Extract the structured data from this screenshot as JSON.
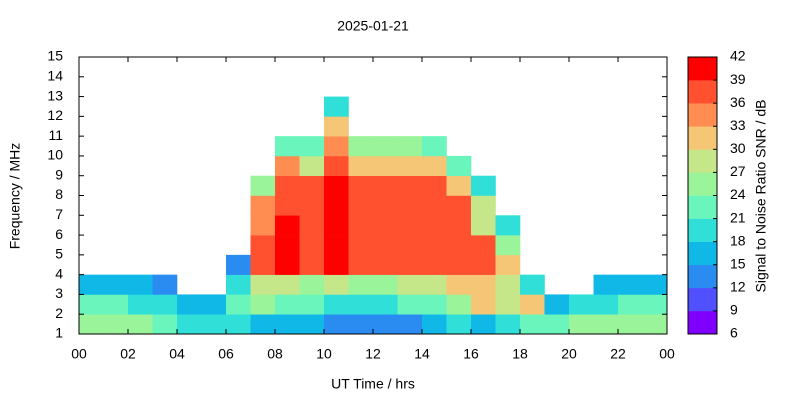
{
  "chart_data": {
    "type": "heatmap",
    "title": "2025-01-21",
    "xlabel": "UT Time / hrs",
    "ylabel": "Frequency / MHz",
    "clabel": "Signal to Noise Ratio SNR / dB",
    "x_bins": [
      0,
      1,
      2,
      3,
      4,
      5,
      6,
      7,
      8,
      9,
      10,
      11,
      12,
      13,
      14,
      15,
      16,
      17,
      18,
      19,
      20,
      21,
      22,
      23,
      24
    ],
    "y_bins": [
      1,
      2,
      3,
      4,
      5,
      6,
      7,
      8,
      9,
      10,
      11,
      12,
      13,
      14,
      15
    ],
    "z": [
      [
        24,
        21,
        15,
        null,
        null,
        null,
        null,
        null,
        null,
        null,
        null,
        null,
        null,
        null
      ],
      [
        24,
        21,
        15,
        null,
        null,
        null,
        null,
        null,
        null,
        null,
        null,
        null,
        null,
        null
      ],
      [
        24,
        18,
        15,
        null,
        null,
        null,
        null,
        null,
        null,
        null,
        null,
        null,
        null,
        null
      ],
      [
        21,
        18,
        12,
        null,
        null,
        null,
        null,
        null,
        null,
        null,
        null,
        null,
        null,
        null
      ],
      [
        18,
        15,
        null,
        null,
        null,
        null,
        null,
        null,
        null,
        null,
        null,
        null,
        null,
        null
      ],
      [
        18,
        15,
        null,
        null,
        null,
        null,
        null,
        null,
        null,
        null,
        null,
        null,
        null,
        null
      ],
      [
        18,
        21,
        18,
        12,
        null,
        null,
        null,
        null,
        null,
        null,
        null,
        null,
        null,
        null
      ],
      [
        15,
        24,
        27,
        36,
        36,
        33,
        33,
        24,
        null,
        null,
        null,
        null,
        null,
        null
      ],
      [
        15,
        21,
        27,
        39,
        39,
        39,
        36,
        36,
        33,
        21,
        null,
        null,
        null,
        null
      ],
      [
        15,
        21,
        24,
        36,
        36,
        36,
        36,
        36,
        27,
        21,
        null,
        null,
        null,
        null
      ],
      [
        12,
        18,
        27,
        39,
        39,
        39,
        39,
        39,
        36,
        33,
        30,
        18,
        null,
        null
      ],
      [
        12,
        18,
        24,
        36,
        36,
        36,
        36,
        36,
        30,
        24,
        null,
        null,
        null,
        null
      ],
      [
        12,
        18,
        24,
        36,
        36,
        36,
        36,
        36,
        30,
        24,
        null,
        null,
        null,
        null
      ],
      [
        12,
        21,
        27,
        36,
        36,
        36,
        36,
        36,
        30,
        24,
        null,
        null,
        null,
        null
      ],
      [
        15,
        21,
        27,
        36,
        36,
        36,
        36,
        36,
        30,
        21,
        null,
        null,
        null,
        null
      ],
      [
        18,
        24,
        30,
        36,
        36,
        36,
        36,
        30,
        21,
        null,
        null,
        null,
        null,
        null
      ],
      [
        15,
        30,
        30,
        36,
        36,
        27,
        27,
        18,
        null,
        null,
        null,
        null,
        null,
        null
      ],
      [
        18,
        27,
        27,
        30,
        24,
        18,
        null,
        null,
        null,
        null,
        null,
        null,
        null,
        null
      ],
      [
        21,
        30,
        18,
        null,
        null,
        null,
        null,
        null,
        null,
        null,
        null,
        null,
        null,
        null
      ],
      [
        21,
        15,
        null,
        null,
        null,
        null,
        null,
        null,
        null,
        null,
        null,
        null,
        null,
        null
      ],
      [
        24,
        18,
        null,
        null,
        null,
        null,
        null,
        null,
        null,
        null,
        null,
        null,
        null,
        null
      ],
      [
        24,
        18,
        15,
        null,
        null,
        null,
        null,
        null,
        null,
        null,
        null,
        null,
        null,
        null
      ],
      [
        24,
        21,
        15,
        null,
        null,
        null,
        null,
        null,
        null,
        null,
        null,
        null,
        null,
        null
      ],
      [
        24,
        21,
        15,
        null,
        null,
        null,
        null,
        null,
        null,
        null,
        null,
        null,
        null,
        null
      ]
    ],
    "xlim": [
      0,
      24
    ],
    "xticks": [
      {
        "value": 0,
        "label": "00"
      },
      {
        "value": 2,
        "label": "02"
      },
      {
        "value": 4,
        "label": "04"
      },
      {
        "value": 6,
        "label": "06"
      },
      {
        "value": 8,
        "label": "08"
      },
      10,
      12,
      14,
      16,
      18,
      20,
      22,
      {
        "value": 24,
        "label": "00"
      }
    ],
    "ylim": [
      1,
      15
    ],
    "yticks": [
      1,
      2,
      3,
      4,
      5,
      6,
      7,
      8,
      9,
      10,
      11,
      12,
      13,
      14,
      15
    ],
    "clim": [
      6,
      42
    ],
    "cticks": [
      6,
      9,
      12,
      15,
      18,
      21,
      24,
      27,
      30,
      33,
      36,
      39,
      42
    ],
    "colorscale": [
      "#8000ff",
      "#5050ff",
      "#2a8cf0",
      "#10b8e8",
      "#30e0d8",
      "#6af5bc",
      "#9af59a",
      "#c6e68a",
      "#f5c676",
      "#ff8c50",
      "#ff5030",
      "#ff0000"
    ]
  }
}
